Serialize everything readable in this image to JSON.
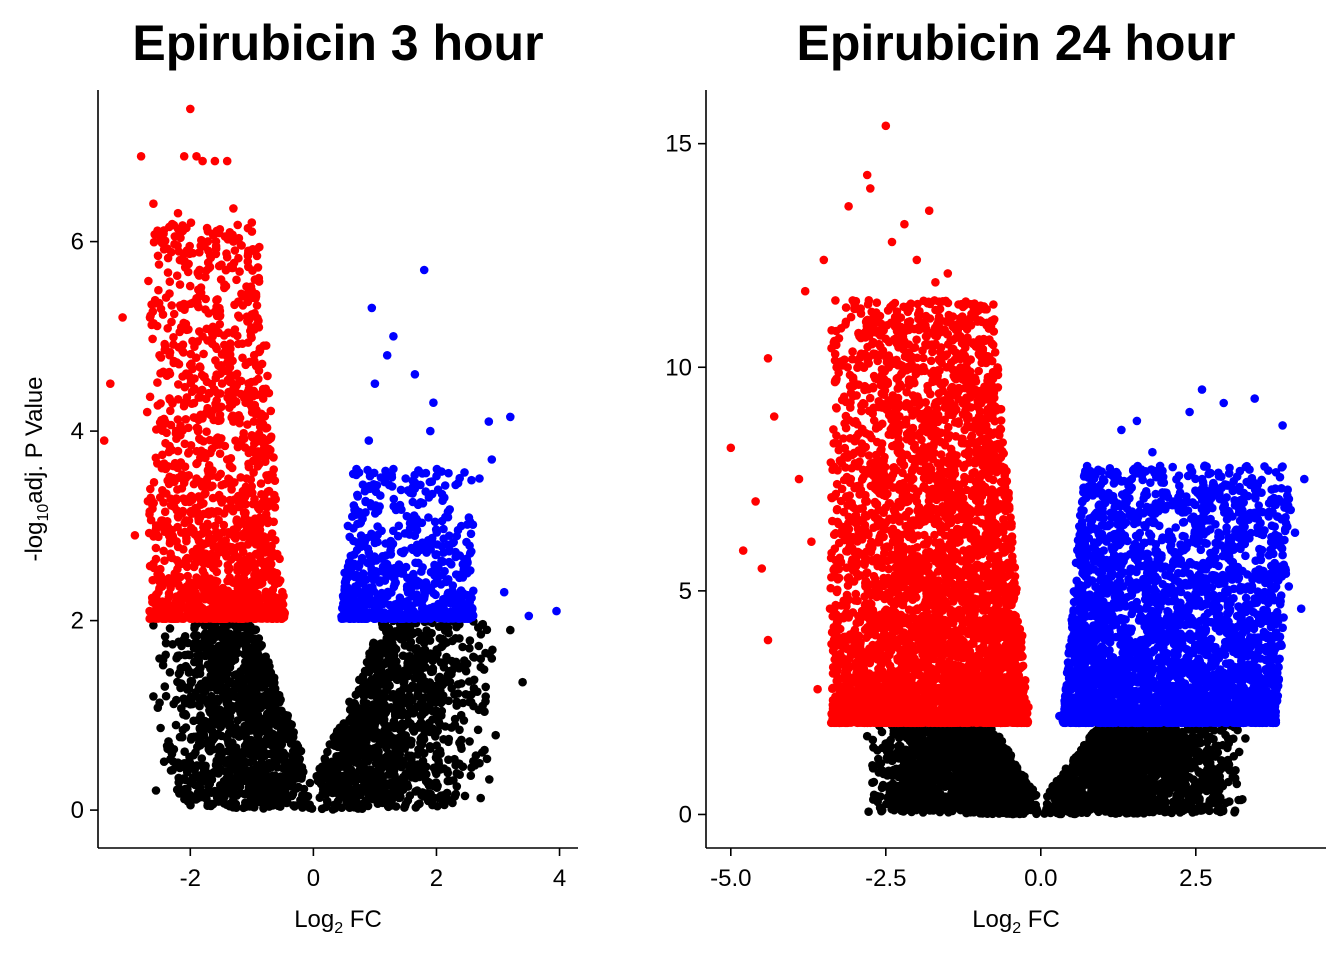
{
  "colors": {
    "down": "#ff0000",
    "up": "#0000ff",
    "ns": "#000000"
  },
  "chart_data": [
    {
      "type": "scatter",
      "title": "Epirubicin 3 hour",
      "xlabel": {
        "base": "Log",
        "sub": "2",
        "tail": " FC"
      },
      "ylabel": {
        "base": "-log",
        "sub": "10",
        "tail": "adj. P Value"
      },
      "xlim": [
        -3.5,
        4.3
      ],
      "ylim": [
        -0.4,
        7.6
      ],
      "xticks": [
        -2,
        0,
        2,
        4
      ],
      "xtick_labels": [
        "-2",
        "0",
        "2",
        "4"
      ],
      "yticks": [
        0,
        2,
        4,
        6
      ],
      "ytick_labels": [
        "0",
        "2",
        "4",
        "6"
      ],
      "threshold": 2,
      "series": [
        {
          "category": "down",
          "color": "#ff0000",
          "points": [
            [
              -2.0,
              7.4
            ],
            [
              -1.9,
              6.9
            ],
            [
              -2.1,
              6.9
            ],
            [
              -1.8,
              6.85
            ],
            [
              -1.6,
              6.85
            ],
            [
              -1.4,
              6.85
            ],
            [
              -2.8,
              6.9
            ],
            [
              -2.6,
              6.4
            ],
            [
              -2.2,
              6.3
            ],
            [
              -1.3,
              6.35
            ],
            [
              -1.0,
              6.2
            ],
            [
              -1.3,
              6.0
            ],
            [
              -3.1,
              5.2
            ],
            [
              -3.3,
              4.5
            ],
            [
              -3.4,
              3.9
            ],
            [
              -2.7,
              4.2
            ],
            [
              -2.5,
              4.8
            ],
            [
              -1.5,
              5.6
            ],
            [
              -1.2,
              5.2
            ],
            [
              -1.8,
              5.0
            ],
            [
              -0.9,
              5.1
            ],
            [
              -1.1,
              4.7
            ],
            [
              -1.7,
              4.4
            ],
            [
              -2.3,
              3.8
            ],
            [
              -2.1,
              4.3
            ],
            [
              -1.3,
              4.1
            ],
            [
              -0.7,
              3.8
            ],
            [
              -0.8,
              3.3
            ],
            [
              -2.4,
              3.6
            ],
            [
              -2.9,
              2.9
            ],
            [
              -2.6,
              2.6
            ],
            [
              -2.2,
              3.1
            ],
            [
              -1.9,
              3.5
            ],
            [
              -1.6,
              3.0
            ],
            [
              -1.2,
              3.2
            ],
            [
              -0.9,
              2.9
            ],
            [
              -0.6,
              2.5
            ],
            [
              -0.55,
              2.2
            ],
            [
              -1.5,
              2.3
            ],
            [
              -2.0,
              2.1
            ],
            [
              -2.5,
              2.2
            ],
            [
              -1.0,
              2.1
            ],
            [
              -1.7,
              2.6
            ],
            [
              -1.4,
              3.7
            ]
          ],
          "cloud": {
            "xmin": -2.7,
            "xmax": -0.45,
            "ymin": 2.02,
            "ymax": 6.2,
            "count": 1500
          }
        },
        {
          "category": "up",
          "color": "#0000ff",
          "points": [
            [
              1.8,
              5.7
            ],
            [
              0.95,
              5.3
            ],
            [
              1.3,
              5.0
            ],
            [
              1.2,
              4.8
            ],
            [
              1.65,
              4.6
            ],
            [
              1.0,
              4.5
            ],
            [
              1.95,
              4.3
            ],
            [
              3.2,
              4.15
            ],
            [
              2.85,
              4.1
            ],
            [
              1.9,
              4.0
            ],
            [
              2.9,
              3.7
            ],
            [
              2.7,
              3.5
            ],
            [
              1.5,
              3.5
            ],
            [
              1.3,
              3.6
            ],
            [
              0.9,
              3.9
            ],
            [
              0.7,
              3.6
            ],
            [
              3.1,
              2.3
            ],
            [
              3.5,
              2.05
            ],
            [
              3.95,
              2.1
            ],
            [
              2.5,
              2.5
            ],
            [
              2.2,
              2.8
            ],
            [
              2.0,
              2.7
            ],
            [
              1.7,
              2.4
            ],
            [
              0.55,
              2.3
            ],
            [
              0.8,
              2.1
            ],
            [
              1.4,
              2.2
            ]
          ],
          "cloud": {
            "xmin": 0.45,
            "xmax": 2.6,
            "ymin": 2.02,
            "ymax": 3.6,
            "count": 700
          }
        },
        {
          "category": "ns",
          "color": "#000000",
          "points": [
            [
              3.4,
              1.35
            ],
            [
              3.2,
              1.9
            ],
            [
              2.9,
              1.6
            ],
            [
              2.8,
              1.3
            ],
            [
              2.75,
              1.1
            ],
            [
              2.3,
              0.9
            ],
            [
              2.2,
              0.75
            ],
            [
              1.8,
              0.6
            ],
            [
              1.3,
              0.25
            ],
            [
              -2.6,
              1.95
            ],
            [
              -2.5,
              1.6
            ],
            [
              -2.6,
              1.2
            ],
            [
              -2.2,
              0.5
            ],
            [
              -1.9,
              0.35
            ],
            [
              -1.6,
              0.2
            ],
            [
              -2.05,
              0.4
            ]
          ],
          "cloud": {
            "count": 2200
          }
        }
      ]
    },
    {
      "type": "scatter",
      "title": "Epirubicin 24 hour",
      "xlabel": {
        "base": "Log",
        "sub": "2",
        "tail": " FC"
      },
      "ylabel": null,
      "xlim": [
        -5.4,
        4.6
      ],
      "ylim": [
        -0.75,
        16.2
      ],
      "xticks": [
        -5.0,
        -2.5,
        0.0,
        2.5
      ],
      "xtick_labels": [
        "-5.0",
        "-2.5",
        "0.0",
        "2.5"
      ],
      "yticks": [
        0,
        5,
        10,
        15
      ],
      "ytick_labels": [
        "0",
        "5",
        "10",
        "15"
      ],
      "threshold": 2,
      "series": [
        {
          "category": "down",
          "color": "#ff0000",
          "points": [
            [
              -2.5,
              15.4
            ],
            [
              -2.8,
              14.3
            ],
            [
              -2.75,
              14.0
            ],
            [
              -3.1,
              13.6
            ],
            [
              -1.8,
              13.5
            ],
            [
              -2.2,
              13.2
            ],
            [
              -3.5,
              12.4
            ],
            [
              -3.8,
              11.7
            ],
            [
              -2.4,
              12.8
            ],
            [
              -2.0,
              12.4
            ],
            [
              -1.5,
              12.1
            ],
            [
              -1.7,
              11.9
            ],
            [
              -4.4,
              10.2
            ],
            [
              -4.3,
              8.9
            ],
            [
              -5.0,
              8.2
            ],
            [
              -4.8,
              5.9
            ],
            [
              -4.5,
              5.5
            ],
            [
              -4.4,
              3.9
            ],
            [
              -4.6,
              7.0
            ],
            [
              -3.9,
              7.5
            ],
            [
              -3.7,
              6.1
            ],
            [
              -3.3,
              9.1
            ],
            [
              -3.4,
              4.6
            ],
            [
              -3.2,
              3.5
            ],
            [
              -3.6,
              2.8
            ],
            [
              -3.1,
              2.3
            ],
            [
              -2.9,
              11.2
            ],
            [
              -2.3,
              10.5
            ],
            [
              -1.6,
              10.1
            ],
            [
              -1.2,
              9.2
            ],
            [
              -0.9,
              8.0
            ],
            [
              -0.5,
              6.5
            ],
            [
              -0.3,
              4.0
            ],
            [
              -0.25,
              3.0
            ],
            [
              -0.2,
              2.4
            ],
            [
              -1.0,
              10.3
            ],
            [
              -1.3,
              10.7
            ]
          ],
          "cloud": {
            "xmin": -3.4,
            "xmax": -0.2,
            "ymin": 2.05,
            "ymax": 11.5,
            "count": 4500
          }
        },
        {
          "category": "up",
          "color": "#0000ff",
          "points": [
            [
              2.6,
              9.5
            ],
            [
              2.95,
              9.2
            ],
            [
              3.45,
              9.3
            ],
            [
              2.4,
              9.0
            ],
            [
              1.55,
              8.8
            ],
            [
              1.3,
              8.6
            ],
            [
              3.9,
              8.7
            ],
            [
              4.25,
              7.5
            ],
            [
              4.1,
              6.3
            ],
            [
              4.2,
              4.6
            ],
            [
              4.0,
              5.1
            ],
            [
              3.9,
              5.8
            ],
            [
              3.7,
              3.5
            ],
            [
              3.5,
              3.2
            ],
            [
              3.3,
              2.6
            ],
            [
              1.0,
              5.6
            ],
            [
              0.75,
              4.7
            ],
            [
              0.55,
              3.5
            ],
            [
              0.4,
              2.6
            ],
            [
              0.3,
              2.2
            ],
            [
              2.0,
              7.2
            ],
            [
              1.8,
              8.1
            ]
          ],
          "cloud": {
            "xmin": 0.35,
            "xmax": 3.8,
            "ymin": 2.05,
            "ymax": 7.8,
            "count": 3500
          }
        },
        {
          "category": "ns",
          "color": "#000000",
          "points": [
            [
              3.3,
              1.7
            ],
            [
              3.2,
              1.4
            ],
            [
              3.0,
              1.1
            ],
            [
              2.6,
              0.9
            ],
            [
              2.3,
              0.7
            ],
            [
              1.8,
              0.5
            ],
            [
              1.2,
              0.25
            ],
            [
              -2.8,
              1.75
            ],
            [
              -2.7,
              1.5
            ],
            [
              -2.4,
              1.2
            ],
            [
              -2.2,
              0.9
            ],
            [
              -1.8,
              0.6
            ],
            [
              -1.3,
              0.3
            ],
            [
              -2.0,
              0.75
            ]
          ],
          "cloud": {
            "count": 3000
          }
        }
      ]
    }
  ]
}
